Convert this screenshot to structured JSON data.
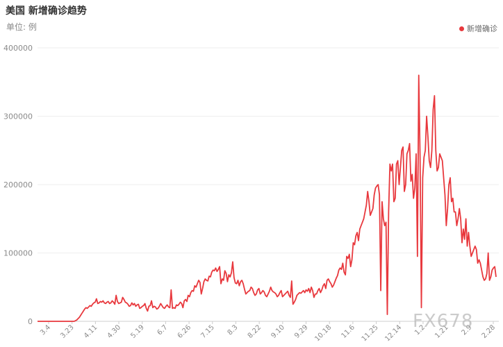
{
  "title": "美国 新增确诊趋势",
  "unit_label": "单位: 例",
  "watermark": "FX678",
  "colors": {
    "line": "#e8383d",
    "grid": "#eeeeee",
    "axis": "#8a8a8a",
    "text": "#333333"
  },
  "chart_data": {
    "type": "line",
    "title": "美国 新增确诊趋势",
    "ylabel": "单位: 例",
    "ylim": [
      0,
      400000
    ],
    "yticks": [
      0,
      100000,
      200000,
      300000,
      400000
    ],
    "ytick_labels": [
      "0",
      "100000",
      "200000",
      "300000",
      "400000"
    ],
    "grid": true,
    "legend": "top-right",
    "xtick_labels": [
      "3.4",
      "3.23",
      "4.11",
      "4.30",
      "5.19",
      "6.7",
      "6.26",
      "7.15",
      "8.3",
      "8.22",
      "9.10",
      "9.29",
      "10.18",
      "11.6",
      "11.25",
      "12.14",
      "1.2",
      "1.21",
      "2.9",
      "2.28"
    ],
    "series": [
      {
        "name": "新增确诊",
        "values": [
          0,
          0,
          0,
          0,
          0,
          0,
          0,
          0,
          0,
          0,
          0,
          0,
          0,
          0,
          0,
          0,
          0,
          0,
          0,
          0,
          0,
          0,
          0,
          0,
          0,
          0,
          0,
          0,
          0,
          1000,
          2000,
          4000,
          6000,
          9000,
          12000,
          15000,
          18000,
          20000,
          19000,
          21000,
          23000,
          22000,
          25000,
          27000,
          28000,
          33000,
          26000,
          27000,
          29000,
          28000,
          30000,
          27000,
          26000,
          28000,
          29000,
          26000,
          27000,
          30000,
          28000,
          25000,
          38000,
          29000,
          26000,
          27000,
          28000,
          35000,
          32000,
          28000,
          27000,
          25000,
          22000,
          23000,
          27000,
          24000,
          26000,
          22000,
          24000,
          25000,
          19000,
          20000,
          22000,
          23000,
          26000,
          19000,
          15000,
          22000,
          23000,
          30000,
          20000,
          22000,
          21000,
          18000,
          19000,
          22000,
          26000,
          23000,
          20000,
          19000,
          22000,
          24000,
          21000,
          20000,
          46000,
          19000,
          20000,
          19000,
          24000,
          23000,
          25000,
          28000,
          26000,
          20000,
          30000,
          32000,
          29000,
          38000,
          36000,
          42000,
          45000,
          44000,
          52000,
          50000,
          55000,
          60000,
          57000,
          40000,
          48000,
          58000,
          62000,
          60000,
          59000,
          66000,
          65000,
          72000,
          75000,
          74000,
          78000,
          73000,
          76000,
          80000,
          55000,
          62000,
          60000,
          74000,
          70000,
          58000,
          68000,
          65000,
          71000,
          87000,
          64000,
          56000,
          55000,
          60000,
          52000,
          58000,
          60000,
          55000,
          47000,
          40000,
          42000,
          44000,
          45000,
          50000,
          48000,
          42000,
          38000,
          40000,
          46000,
          48000,
          40000,
          42000,
          45000,
          43000,
          38000,
          36000,
          40000,
          44000,
          50000,
          45000,
          43000,
          42000,
          40000,
          36000,
          38000,
          42000,
          45000,
          36000,
          38000,
          40000,
          42000,
          44000,
          38000,
          35000,
          59000,
          25000,
          28000,
          32000,
          38000,
          40000,
          42000,
          41000,
          43000,
          45000,
          42000,
          46000,
          44000,
          48000,
          42000,
          50000,
          45000,
          35000,
          40000,
          40000,
          45000,
          48000,
          42000,
          46000,
          52000,
          55000,
          48000,
          60000,
          62000,
          58000,
          55000,
          50000,
          53000,
          58000,
          63000,
          67000,
          75000,
          78000,
          76000,
          85000,
          72000,
          68000,
          95000,
          92000,
          98000,
          80000,
          90000,
          115000,
          112000,
          125000,
          130000,
          118000,
          135000,
          140000,
          145000,
          150000,
          160000,
          170000,
          190000,
          175000,
          155000,
          160000,
          165000,
          185000,
          195000,
          198000,
          200000,
          185000,
          45000,
          175000,
          150000,
          140000,
          145000,
          10000,
          160000,
          230000,
          220000,
          230000,
          175000,
          180000,
          230000,
          235000,
          200000,
          225000,
          250000,
          255000,
          190000,
          200000,
          245000,
          250000,
          260000,
          205000,
          215000,
          180000,
          195000,
          245000,
          95000,
          360000,
          240000,
          20000,
          210000,
          240000,
          250000,
          300000,
          270000,
          235000,
          225000,
          250000,
          310000,
          330000,
          250000,
          220000,
          225000,
          245000,
          240000,
          235000,
          210000,
          185000,
          140000,
          165000,
          200000,
          210000,
          175000,
          180000,
          160000,
          160000,
          140000,
          150000,
          165000,
          150000,
          115000,
          135000,
          120000,
          150000,
          110000,
          130000,
          110000,
          95000,
          100000,
          105000,
          110000,
          105000,
          85000,
          90000,
          85000,
          75000,
          65000,
          60000,
          62000,
          70000,
          100000,
          60000,
          65000,
          75000,
          78000,
          80000,
          65000
        ]
      }
    ]
  }
}
